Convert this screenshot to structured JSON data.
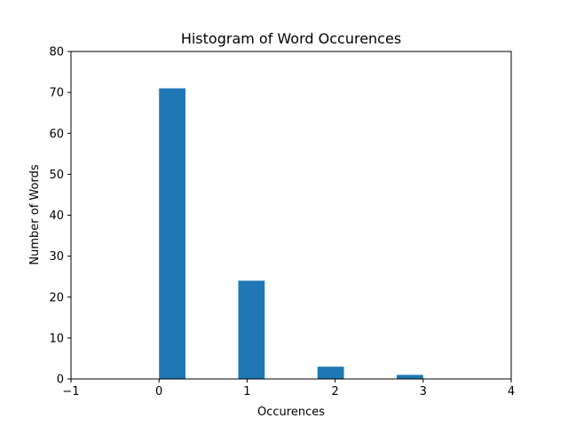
{
  "chart_data": {
    "type": "bar",
    "title": "Histogram of Word Occurences",
    "xlabel": "Occurences",
    "ylabel": "Number of Words",
    "xlim": [
      -1,
      4
    ],
    "ylim": [
      0,
      80
    ],
    "xticks": [
      -1,
      0,
      1,
      2,
      3,
      4
    ],
    "xtick_labels": [
      "−1",
      "0",
      "1",
      "2",
      "3",
      "4"
    ],
    "yticks": [
      0,
      10,
      20,
      30,
      40,
      50,
      60,
      70,
      80
    ],
    "yticks_labels": [
      "0",
      "10",
      "20",
      "30",
      "40",
      "50",
      "60",
      "70",
      "80"
    ],
    "bars": [
      {
        "x_start": 0.0,
        "x_end": 0.3,
        "value": 71
      },
      {
        "x_start": 0.9,
        "x_end": 1.2,
        "value": 24
      },
      {
        "x_start": 1.8,
        "x_end": 2.1,
        "value": 3
      },
      {
        "x_start": 2.7,
        "x_end": 3.0,
        "value": 1
      }
    ],
    "bar_color": "#1f77b4",
    "grid": false,
    "legend": "none"
  }
}
